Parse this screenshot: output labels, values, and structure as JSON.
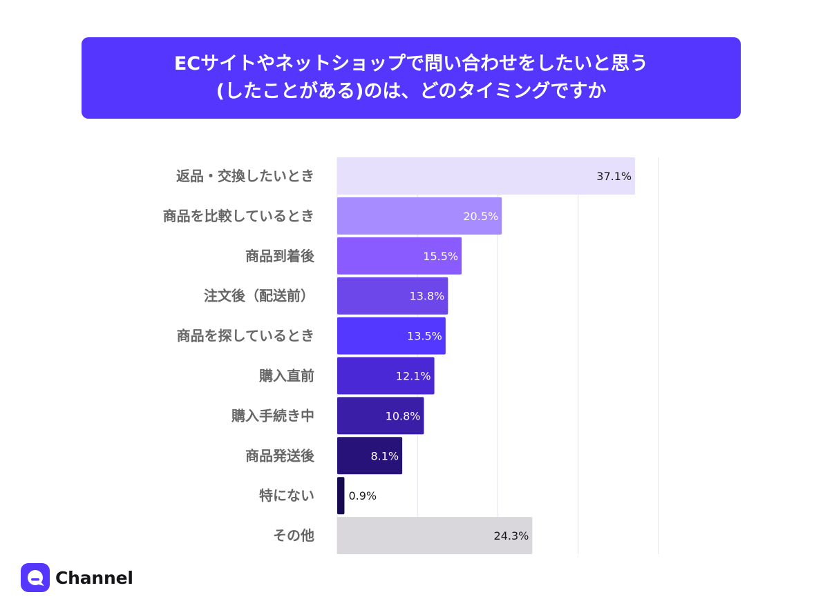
{
  "title_lines": [
    "ECサイトやネットショップで問い合わせをしたいと思う",
    "(したことがある)のは、どのタイミングですか"
  ],
  "brand": {
    "name": "Channel",
    "icon": "channel-talk-logo-icon",
    "accent": "#5436ff"
  },
  "chart_data": {
    "type": "bar",
    "orientation": "horizontal",
    "title": "ECサイトやネットショップで問い合わせをしたいと思う(したことがある)のは、どのタイミングですか",
    "xlabel": "",
    "ylabel": "",
    "xlim": [
      0,
      40
    ],
    "grid": true,
    "categories": [
      "返品・交換したいとき",
      "商品を比較しているとき",
      "商品到着後",
      "注文後（配送前）",
      "商品を探しているとき",
      "購入直前",
      "購入手続き中",
      "商品発送後",
      "特にない",
      "その他"
    ],
    "values": [
      37.1,
      20.5,
      15.5,
      13.8,
      13.5,
      12.1,
      10.8,
      8.1,
      0.9,
      24.3
    ],
    "value_labels": [
      "37.1%",
      "20.5%",
      "15.5%",
      "13.8%",
      "13.5%",
      "12.1%",
      "10.8%",
      "8.1%",
      "0.9%",
      "24.3%"
    ],
    "bar_colors": [
      "#e6e0fd",
      "#a68cff",
      "#8a5cff",
      "#6e47eb",
      "#5538ff",
      "#4a28d6",
      "#3a1ea8",
      "#261278",
      "#17094f",
      "#d9d6dc"
    ],
    "label_colors": [
      "#1a1a1a",
      "#ffffff",
      "#ffffff",
      "#ffffff",
      "#ffffff",
      "#ffffff",
      "#ffffff",
      "#ffffff",
      "#1a1a1a",
      "#1a1a1a"
    ]
  }
}
